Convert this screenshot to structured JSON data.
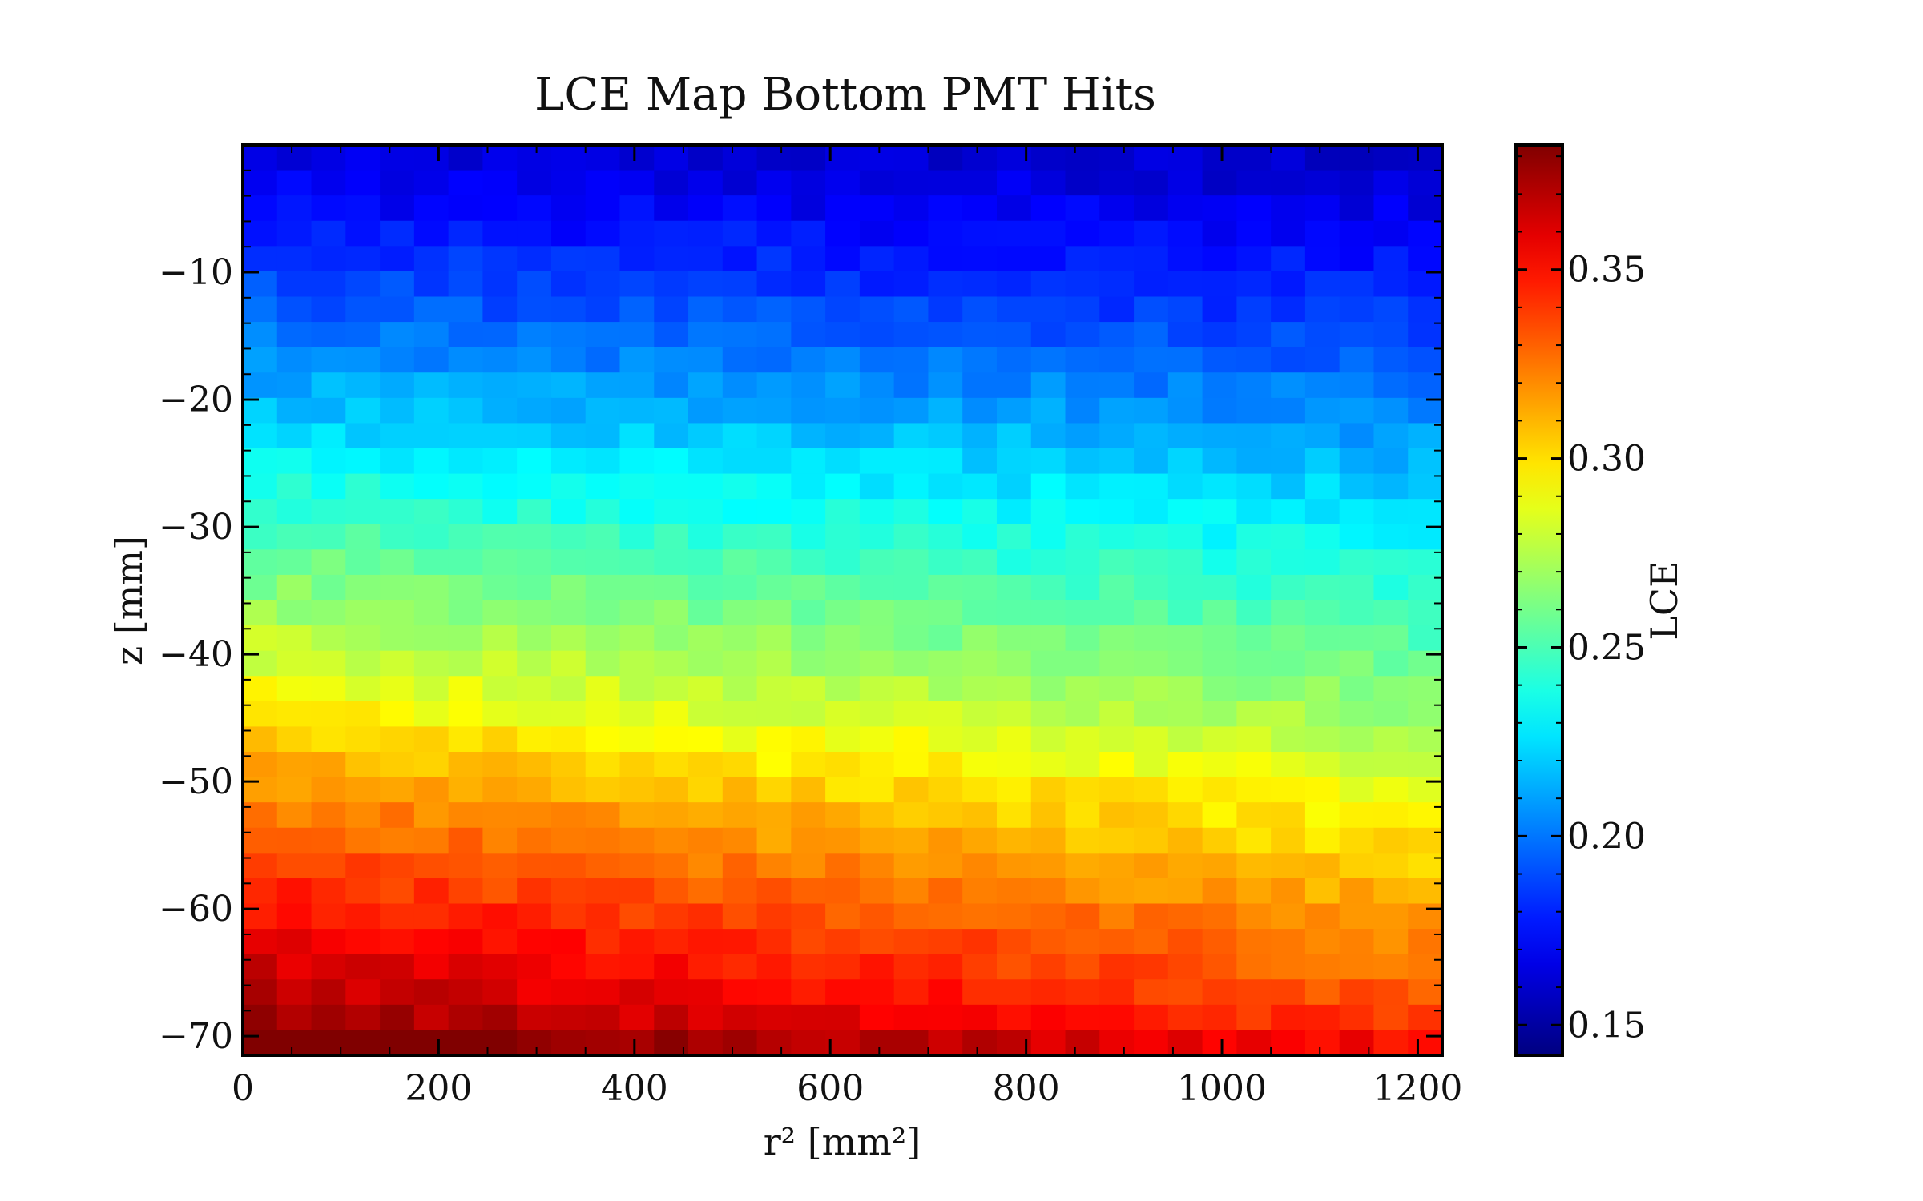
{
  "chart_data": {
    "type": "heatmap",
    "title": "LCE Map Bottom PMT Hits",
    "xlabel": "r² [mm²]",
    "ylabel": "z [mm]",
    "colorbar_label": "LCE",
    "colormap": "jet",
    "xlim": [
      0,
      1225
    ],
    "ylim": [
      -71.5,
      0
    ],
    "x_ticks": [
      0,
      200,
      400,
      600,
      800,
      1000,
      1200
    ],
    "y_ticks": [
      -70,
      -60,
      -50,
      -40,
      -30,
      -20,
      -10
    ],
    "colorbar_range": [
      0.142,
      0.383
    ],
    "colorbar_ticks": [
      0.15,
      0.2,
      0.25,
      0.3,
      0.35
    ],
    "x_bins": 35,
    "z_bins": 36,
    "grid": false,
    "z_rows": [
      {
        "z": -0.99,
        "lce": 0.162
      },
      {
        "z": -2.98,
        "lce": 0.166
      },
      {
        "z": -4.97,
        "lce": 0.17
      },
      {
        "z": -6.95,
        "lce": 0.175
      },
      {
        "z": -8.94,
        "lce": 0.18
      },
      {
        "z": -10.93,
        "lce": 0.184
      },
      {
        "z": -12.92,
        "lce": 0.189
      },
      {
        "z": -14.9,
        "lce": 0.195
      },
      {
        "z": -16.89,
        "lce": 0.2
      },
      {
        "z": -18.88,
        "lce": 0.206
      },
      {
        "z": -20.86,
        "lce": 0.212
      },
      {
        "z": -22.85,
        "lce": 0.218
      },
      {
        "z": -24.84,
        "lce": 0.224
      },
      {
        "z": -26.82,
        "lce": 0.23
      },
      {
        "z": -28.81,
        "lce": 0.236
      },
      {
        "z": -30.8,
        "lce": 0.242
      },
      {
        "z": -32.78,
        "lce": 0.248
      },
      {
        "z": -34.77,
        "lce": 0.253
      },
      {
        "z": -36.76,
        "lce": 0.259
      },
      {
        "z": -38.74,
        "lce": 0.265
      },
      {
        "z": -40.73,
        "lce": 0.271
      },
      {
        "z": -42.72,
        "lce": 0.277
      },
      {
        "z": -44.7,
        "lce": 0.283
      },
      {
        "z": -46.69,
        "lce": 0.29
      },
      {
        "z": -48.68,
        "lce": 0.297
      },
      {
        "z": -50.66,
        "lce": 0.304
      },
      {
        "z": -52.65,
        "lce": 0.31
      },
      {
        "z": -54.64,
        "lce": 0.316
      },
      {
        "z": -56.63,
        "lce": 0.322
      },
      {
        "z": -58.61,
        "lce": 0.328
      },
      {
        "z": -60.6,
        "lce": 0.334
      },
      {
        "z": -62.59,
        "lce": 0.34
      },
      {
        "z": -64.57,
        "lce": 0.345
      },
      {
        "z": -66.56,
        "lce": 0.351
      },
      {
        "z": -68.55,
        "lce": 0.358
      },
      {
        "z": -70.53,
        "lce": 0.372
      }
    ],
    "r2_trend": {
      "near_bottom_drop_per_1000": 0.035,
      "near_top_drop_per_1000": 0.004
    },
    "cell_jitter": 0.006
  }
}
